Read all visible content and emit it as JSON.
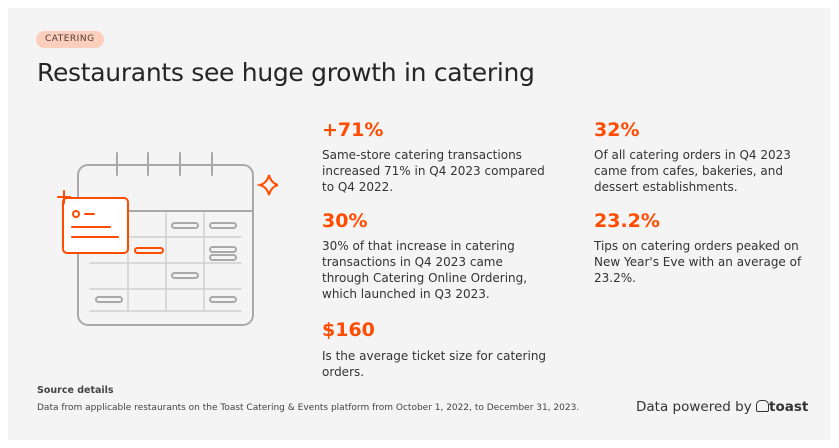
{
  "tag": "CATERING",
  "title": "Restaurants see huge growth in catering",
  "stats": [
    {
      "value": "+71%",
      "text": "Same-store catering transactions increased 71% in Q4 2023 compared to Q4 2022."
    },
    {
      "value": "30%",
      "text": "30% of that increase in catering transactions in Q4 2023 came through Catering Online Ordering, which launched in Q3 2023."
    },
    {
      "value": "$160",
      "text": "Is the average ticket size for catering orders."
    },
    {
      "value": "32%",
      "text": "Of all catering orders in Q4 2023 came from cafes, bakeries, and dessert establishments."
    },
    {
      "value": "23.2%",
      "text": "Tips on catering orders peaked on New Year's Eve with an average of 23.2%."
    }
  ],
  "source": {
    "label": "Source details",
    "text": "Data from applicable restaurants on the Toast  Catering & Events platform from October 1, 2022, to December 31, 2023."
  },
  "footer": {
    "text": "Data powered by",
    "brand": "toast"
  }
}
